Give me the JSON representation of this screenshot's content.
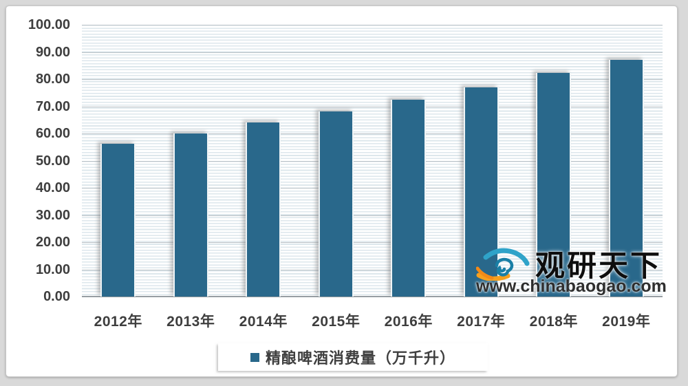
{
  "chart_data": {
    "type": "bar",
    "categories": [
      "2012年",
      "2013年",
      "2014年",
      "2015年",
      "2016年",
      "2017年",
      "2018年",
      "2019年"
    ],
    "series": [
      {
        "name": "精酿啤酒消费量（万千升）",
        "values": [
          56.2,
          60.0,
          64.0,
          68.1,
          72.4,
          77.0,
          82.3,
          87.0
        ]
      }
    ],
    "title": "",
    "xlabel": "",
    "ylabel": "",
    "ylim": [
      0,
      100
    ],
    "ytick_values": [
      0,
      10,
      20,
      30,
      40,
      50,
      60,
      70,
      80,
      90,
      100
    ],
    "ytick_labels": [
      "0.00",
      "10.00",
      "20.00",
      "30.00",
      "40.00",
      "50.00",
      "60.00",
      "70.00",
      "80.00",
      "90.00",
      "100.00"
    ],
    "grid": "horizontal-major-with-fine-stripes",
    "legend_position": "bottom",
    "bar_color": "#29688B"
  },
  "legend": {
    "marker_icon": "legend-square-icon",
    "label": "精酿啤酒消费量（万千升）"
  },
  "watermark": {
    "logo_icon": "eye-swirl-logo-icon",
    "brand": "观研天下",
    "url": "www.chinabaogao.com",
    "colors": {
      "logo_orange": "#F6A01E",
      "logo_blue": "#2FA3C9",
      "logo_teal": "#1A7FA6"
    }
  }
}
